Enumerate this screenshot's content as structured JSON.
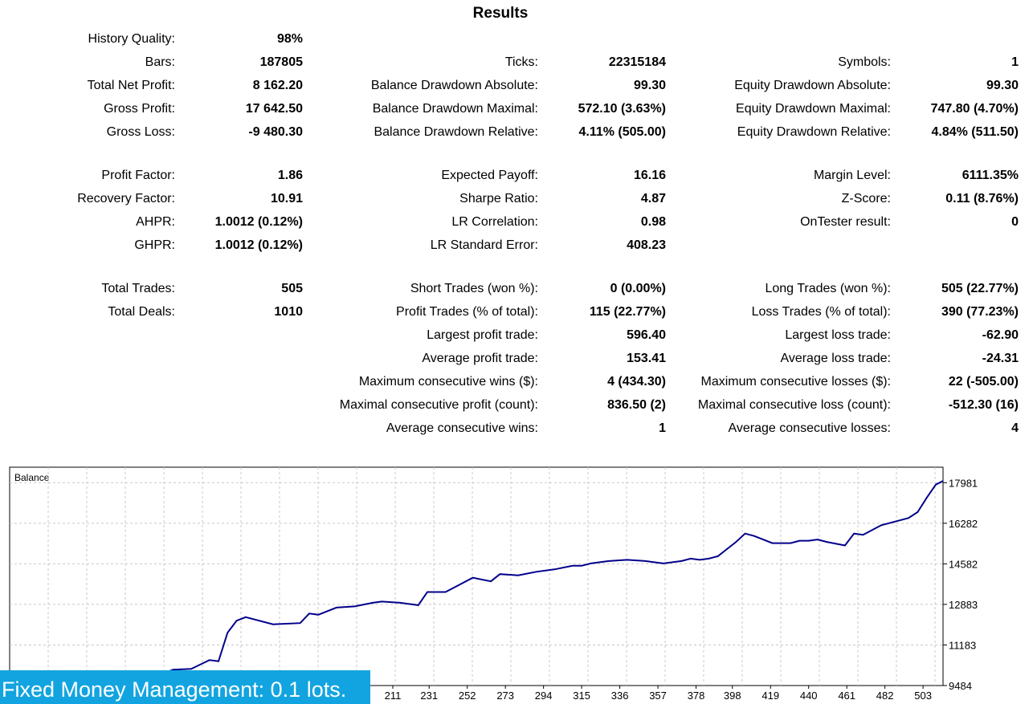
{
  "title": "Results",
  "stats": {
    "col1": [
      {
        "label": "History Quality:",
        "value": "98%",
        "row": 0
      },
      {
        "label": "Bars:",
        "value": "187805",
        "row": 1
      },
      {
        "label": "Total Net Profit:",
        "value": "8 162.20",
        "row": 2
      },
      {
        "label": "Gross Profit:",
        "value": "17 642.50",
        "row": 3
      },
      {
        "label": "Gross Loss:",
        "value": "-9 480.30",
        "row": 4
      },
      {
        "label": "Profit Factor:",
        "value": "1.86",
        "row": 5
      },
      {
        "label": "Recovery Factor:",
        "value": "10.91",
        "row": 6
      },
      {
        "label": "AHPR:",
        "value": "1.0012 (0.12%)",
        "row": 7
      },
      {
        "label": "GHPR:",
        "value": "1.0012 (0.12%)",
        "row": 8
      },
      {
        "label": "Total Trades:",
        "value": "505",
        "row": 9
      },
      {
        "label": "Total Deals:",
        "value": "1010",
        "row": 10
      }
    ],
    "col2": [
      {
        "label": "Ticks:",
        "value": "22315184",
        "row": 1
      },
      {
        "label": "Balance Drawdown Absolute:",
        "value": "99.30",
        "row": 2
      },
      {
        "label": "Balance Drawdown Maximal:",
        "value": "572.10 (3.63%)",
        "row": 3
      },
      {
        "label": "Balance Drawdown Relative:",
        "value": "4.11% (505.00)",
        "row": 4
      },
      {
        "label": "Expected Payoff:",
        "value": "16.16",
        "row": 5
      },
      {
        "label": "Sharpe Ratio:",
        "value": "4.87",
        "row": 6
      },
      {
        "label": "LR Correlation:",
        "value": "0.98",
        "row": 7
      },
      {
        "label": "LR Standard Error:",
        "value": "408.23",
        "row": 8
      },
      {
        "label": "Short Trades (won %):",
        "value": "0 (0.00%)",
        "row": 9
      },
      {
        "label": "Profit Trades (% of total):",
        "value": "115 (22.77%)",
        "row": 10
      },
      {
        "label": "Largest profit trade:",
        "value": "596.40",
        "row": 11
      },
      {
        "label": "Average profit trade:",
        "value": "153.41",
        "row": 12
      },
      {
        "label": "Maximum consecutive wins ($):",
        "value": "4 (434.30)",
        "row": 13
      },
      {
        "label": "Maximal consecutive profit (count):",
        "value": "836.50 (2)",
        "row": 14
      },
      {
        "label": "Average consecutive wins:",
        "value": "1",
        "row": 15
      }
    ],
    "col3": [
      {
        "label": "Symbols:",
        "value": "1",
        "row": 1
      },
      {
        "label": "Equity Drawdown Absolute:",
        "value": "99.30",
        "row": 2
      },
      {
        "label": "Equity Drawdown Maximal:",
        "value": "747.80 (4.70%)",
        "row": 3
      },
      {
        "label": "Equity Drawdown Relative:",
        "value": "4.84% (511.50)",
        "row": 4
      },
      {
        "label": "Margin Level:",
        "value": "6111.35%",
        "row": 5
      },
      {
        "label": "Z-Score:",
        "value": "0.11 (8.76%)",
        "row": 6
      },
      {
        "label": "OnTester result:",
        "value": "0",
        "row": 7
      },
      {
        "label": "Long Trades (won %):",
        "value": "505 (22.77%)",
        "row": 9
      },
      {
        "label": "Loss Trades (% of total):",
        "value": "390 (77.23%)",
        "row": 10
      },
      {
        "label": "Largest loss trade:",
        "value": "-62.90",
        "row": 11
      },
      {
        "label": "Average loss trade:",
        "value": "-24.31",
        "row": 12
      },
      {
        "label": "Maximum consecutive losses ($):",
        "value": "22 (-505.00)",
        "row": 13
      },
      {
        "label": "Maximal consecutive loss (count):",
        "value": "-512.30 (16)",
        "row": 14
      },
      {
        "label": "Average consecutive losses:",
        "value": "4",
        "row": 15
      }
    ]
  },
  "chart_data": {
    "type": "line",
    "title": "Balance",
    "xlabel": "",
    "ylabel": "",
    "xlim": [
      0,
      514
    ],
    "ylim": [
      9484,
      18630
    ],
    "x_ticks": [
      211,
      231,
      252,
      273,
      294,
      315,
      336,
      357,
      378,
      398,
      419,
      440,
      461,
      482,
      503
    ],
    "y_ticks": [
      9484,
      11183,
      12883,
      14582,
      16282,
      17981
    ],
    "grid": true,
    "line_color": "#00008b",
    "series": [
      {
        "x": [
          0,
          20,
          35,
          40,
          55,
          60,
          70,
          85,
          90,
          100,
          110,
          115,
          120,
          125,
          130,
          145,
          160,
          165,
          170,
          180,
          190,
          200,
          205,
          215,
          220,
          225,
          230,
          240,
          245,
          255,
          265,
          270,
          280,
          290,
          300,
          310,
          315,
          320,
          330,
          340,
          350,
          355,
          360,
          370,
          375,
          380,
          385,
          390,
          395,
          400,
          405,
          410,
          420,
          430,
          435,
          440,
          445,
          450,
          460,
          465,
          470,
          475,
          480,
          485,
          490,
          495,
          500,
          505,
          510,
          514
        ],
        "values": [
          9484,
          9780,
          9750,
          9800,
          9700,
          9840,
          9820,
          10000,
          10150,
          10180,
          10550,
          10500,
          11700,
          12200,
          12350,
          12050,
          12100,
          12500,
          12450,
          12750,
          12800,
          12950,
          13000,
          12950,
          12900,
          12850,
          13400,
          13400,
          13600,
          14000,
          13850,
          14150,
          14100,
          14250,
          14350,
          14500,
          14500,
          14600,
          14700,
          14750,
          14700,
          14650,
          14600,
          14700,
          14800,
          14750,
          14800,
          14900,
          15200,
          15500,
          15850,
          15750,
          15450,
          15450,
          15550,
          15550,
          15600,
          15500,
          15350,
          15850,
          15800,
          16000,
          16200,
          16300,
          16400,
          16500,
          16750,
          17350,
          17900,
          18050
        ]
      }
    ]
  },
  "banner": "Fixed Money Management: 0.1 lots."
}
